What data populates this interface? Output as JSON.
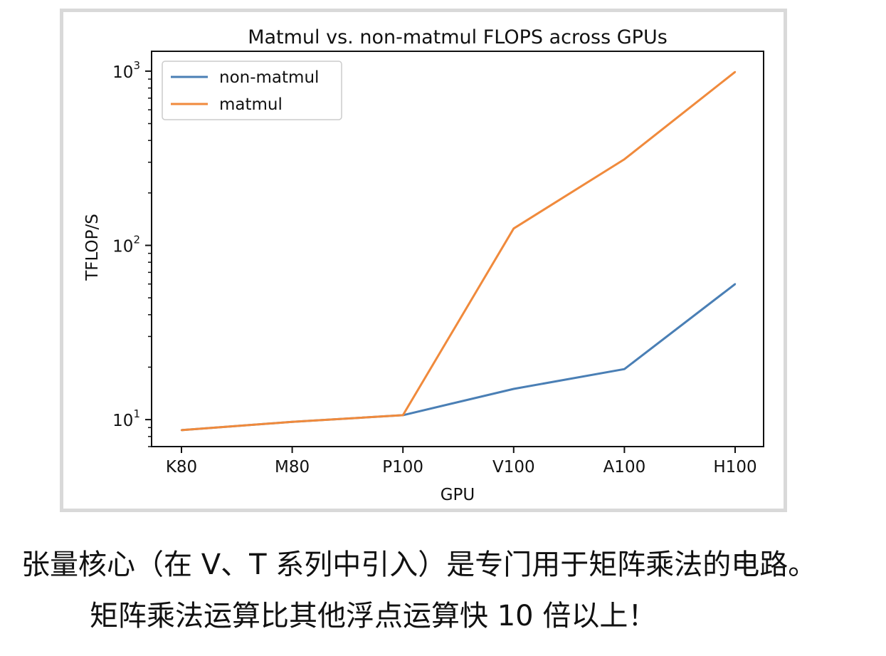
{
  "chart_data": {
    "type": "line",
    "title": "Matmul vs. non-matmul FLOPS across GPUs",
    "xlabel": "GPU",
    "ylabel": "TFLOP/S",
    "yscale": "log",
    "ylim": [
      7,
      1300
    ],
    "y_ticks": [
      {
        "value": 10,
        "base": "10",
        "exp": "1"
      },
      {
        "value": 100,
        "base": "10",
        "exp": "2"
      },
      {
        "value": 1000,
        "base": "10",
        "exp": "3"
      }
    ],
    "categories": [
      "K80",
      "M80",
      "P100",
      "V100",
      "A100",
      "H100"
    ],
    "series": [
      {
        "name": "non-matmul",
        "color": "#4a7fb5",
        "values": [
          8.7,
          9.7,
          10.6,
          15,
          19.5,
          60
        ]
      },
      {
        "name": "matmul",
        "color": "#f08a3c",
        "values": [
          8.7,
          9.7,
          10.6,
          125,
          312,
          990
        ]
      }
    ],
    "grid": false,
    "legend_position": "top-left"
  },
  "captions": {
    "line1": "张量核心（在 V、T 系列中引入）是专门用于矩阵乘法的电路。",
    "line2": "矩阵乘法运算比其他浮点运算快 10 倍以上！"
  }
}
